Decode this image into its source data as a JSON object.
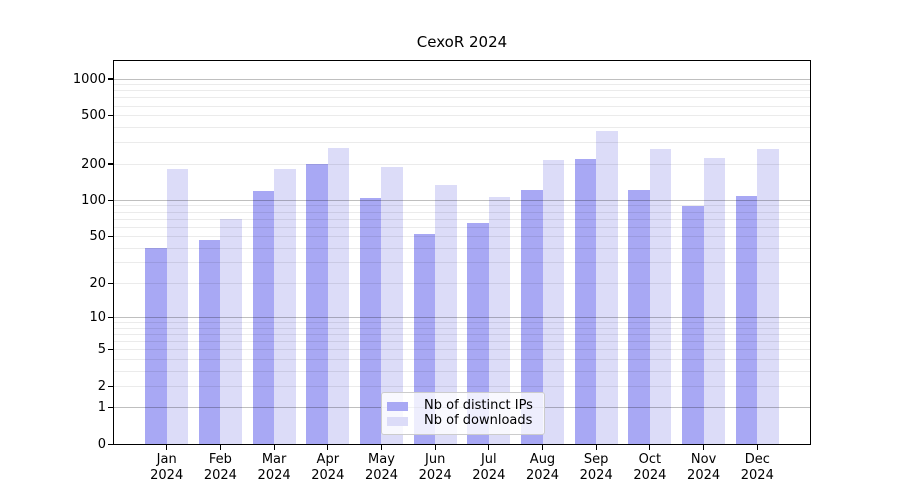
{
  "title": "CexoR 2024",
  "colors": {
    "bar_distinct_ips": "#a8a8f4",
    "bar_downloads": "#dcdcf8",
    "grid_major": "rgba(0,0,0,0.25)",
    "grid_minor": "rgba(0,0,0,0.08)",
    "spine": "#000000",
    "text": "#000000",
    "legend_border": "#cccccc",
    "legend_bg": "rgba(255,255,255,0.8)"
  },
  "legend": {
    "items": [
      {
        "label": "Nb of distinct IPs"
      },
      {
        "label": "Nb of downloads"
      }
    ]
  },
  "y_axis": {
    "labeled_ticks": [
      0,
      1,
      2,
      5,
      10,
      20,
      50,
      100,
      200,
      500,
      1000
    ],
    "major_grid_values": [
      1,
      10,
      100,
      1000
    ],
    "minor_grid_bases": [
      1,
      10,
      100
    ]
  },
  "chart_data": {
    "type": "bar",
    "title": "CexoR 2024",
    "categories": [
      "Jan 2024",
      "Feb 2024",
      "Mar 2024",
      "Apr 2024",
      "May 2024",
      "Jun 2024",
      "Jul 2024",
      "Aug 2024",
      "Sep 2024",
      "Oct 2024",
      "Nov 2024",
      "Dec 2024"
    ],
    "series": [
      {
        "name": "Nb of distinct IPs",
        "color": "#a8a8f4",
        "values": [
          40,
          47,
          120,
          200,
          105,
          53,
          65,
          123,
          220,
          123,
          90,
          108
        ]
      },
      {
        "name": "Nb of downloads",
        "color": "#dcdcf8",
        "values": [
          182,
          70,
          182,
          270,
          188,
          133,
          107,
          215,
          375,
          265,
          225,
          265
        ]
      }
    ],
    "xlabel": "",
    "ylabel": "",
    "y_scale": "log10(1+value)",
    "y_ticks": [
      0,
      1,
      2,
      5,
      10,
      20,
      50,
      100,
      200,
      500,
      1000
    ],
    "ylim": [
      0,
      1435
    ],
    "grid": "on",
    "grid_above_bars": true,
    "legend_position": "lower-center"
  }
}
